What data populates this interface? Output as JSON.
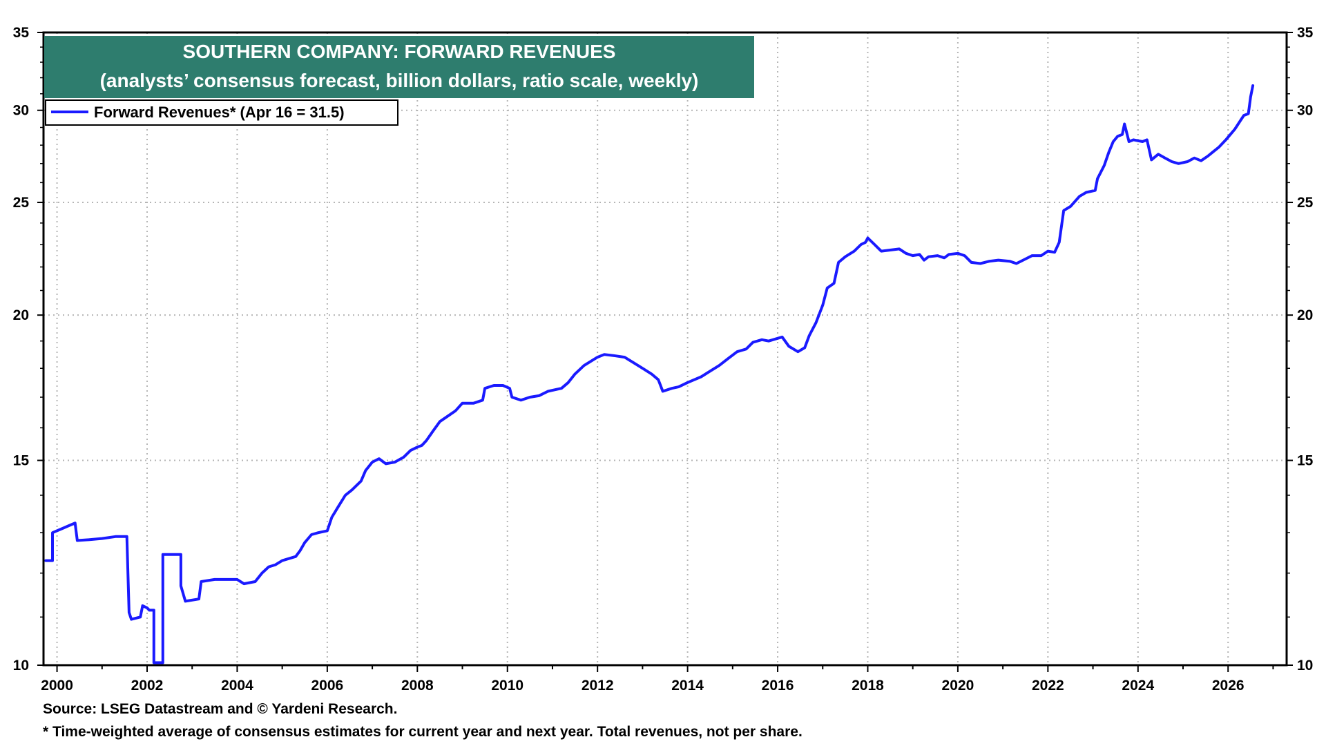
{
  "chart_data": {
    "type": "line",
    "title": "SOUTHERN COMPANY: FORWARD REVENUES",
    "subtitle": "(analysts’ consensus forecast, billion dollars, ratio scale, weekly)",
    "scale": "log",
    "ylim": [
      10,
      35
    ],
    "xlim": [
      1999.7,
      2027.3
    ],
    "y_ticks": [
      {
        "label": "35",
        "value": 35
      },
      {
        "label": "30",
        "value": 30
      },
      {
        "label": "25",
        "value": 25
      },
      {
        "label": "20",
        "value": 20
      },
      {
        "label": "15",
        "value": 15
      },
      {
        "label": "10",
        "value": 10
      }
    ],
    "x_ticks": [
      {
        "label": "2000",
        "value": 2000
      },
      {
        "label": "2002",
        "value": 2002
      },
      {
        "label": "2004",
        "value": 2004
      },
      {
        "label": "2006",
        "value": 2006
      },
      {
        "label": "2008",
        "value": 2008
      },
      {
        "label": "2010",
        "value": 2010
      },
      {
        "label": "2012",
        "value": 2012
      },
      {
        "label": "2014",
        "value": 2014
      },
      {
        "label": "2016",
        "value": 2016
      },
      {
        "label": "2018",
        "value": 2018
      },
      {
        "label": "2020",
        "value": 2020
      },
      {
        "label": "2022",
        "value": 2022
      },
      {
        "label": "2024",
        "value": 2024
      },
      {
        "label": "2026",
        "value": 2026
      }
    ],
    "grid": true,
    "legend_position": "top-left",
    "series": [
      {
        "name": "Forward Revenues* (Apr 16 = 31.5)",
        "color": "#1a1aff",
        "points": [
          [
            1999.75,
            12.3
          ],
          [
            1999.9,
            12.3
          ],
          [
            1999.9,
            13.0
          ],
          [
            2000.1,
            13.1
          ],
          [
            2000.3,
            13.2
          ],
          [
            2000.4,
            13.25
          ],
          [
            2000.45,
            12.8
          ],
          [
            2000.7,
            12.82
          ],
          [
            2001.0,
            12.85
          ],
          [
            2001.3,
            12.9
          ],
          [
            2001.55,
            12.9
          ],
          [
            2001.6,
            11.1
          ],
          [
            2001.65,
            10.95
          ],
          [
            2001.85,
            11.0
          ],
          [
            2001.9,
            11.25
          ],
          [
            2002.0,
            11.2
          ],
          [
            2002.05,
            11.15
          ],
          [
            2002.15,
            11.15
          ],
          [
            2002.15,
            10.05
          ],
          [
            2002.35,
            10.05
          ],
          [
            2002.35,
            12.45
          ],
          [
            2002.75,
            12.45
          ],
          [
            2002.75,
            11.7
          ],
          [
            2002.85,
            11.35
          ],
          [
            2003.15,
            11.4
          ],
          [
            2003.2,
            11.8
          ],
          [
            2003.5,
            11.85
          ],
          [
            2003.8,
            11.85
          ],
          [
            2004.0,
            11.85
          ],
          [
            2004.15,
            11.75
          ],
          [
            2004.4,
            11.8
          ],
          [
            2004.55,
            12.0
          ],
          [
            2004.7,
            12.15
          ],
          [
            2004.85,
            12.2
          ],
          [
            2005.0,
            12.3
          ],
          [
            2005.3,
            12.4
          ],
          [
            2005.4,
            12.55
          ],
          [
            2005.5,
            12.75
          ],
          [
            2005.65,
            12.95
          ],
          [
            2005.8,
            13.0
          ],
          [
            2006.0,
            13.05
          ],
          [
            2006.1,
            13.4
          ],
          [
            2006.25,
            13.7
          ],
          [
            2006.4,
            14.0
          ],
          [
            2006.55,
            14.15
          ],
          [
            2006.75,
            14.4
          ],
          [
            2006.85,
            14.7
          ],
          [
            2007.0,
            14.95
          ],
          [
            2007.15,
            15.05
          ],
          [
            2007.3,
            14.9
          ],
          [
            2007.5,
            14.95
          ],
          [
            2007.7,
            15.1
          ],
          [
            2007.85,
            15.3
          ],
          [
            2008.0,
            15.4
          ],
          [
            2008.1,
            15.45
          ],
          [
            2008.2,
            15.6
          ],
          [
            2008.35,
            15.9
          ],
          [
            2008.5,
            16.2
          ],
          [
            2008.7,
            16.4
          ],
          [
            2008.85,
            16.55
          ],
          [
            2009.0,
            16.8
          ],
          [
            2009.25,
            16.8
          ],
          [
            2009.45,
            16.9
          ],
          [
            2009.5,
            17.3
          ],
          [
            2009.7,
            17.4
          ],
          [
            2009.9,
            17.4
          ],
          [
            2010.05,
            17.3
          ],
          [
            2010.1,
            17.0
          ],
          [
            2010.3,
            16.9
          ],
          [
            2010.5,
            17.0
          ],
          [
            2010.7,
            17.05
          ],
          [
            2010.9,
            17.2
          ],
          [
            2011.05,
            17.25
          ],
          [
            2011.2,
            17.3
          ],
          [
            2011.35,
            17.5
          ],
          [
            2011.5,
            17.8
          ],
          [
            2011.7,
            18.1
          ],
          [
            2011.9,
            18.3
          ],
          [
            2012.0,
            18.4
          ],
          [
            2012.15,
            18.5
          ],
          [
            2012.4,
            18.45
          ],
          [
            2012.6,
            18.4
          ],
          [
            2012.8,
            18.2
          ],
          [
            2013.0,
            18.0
          ],
          [
            2013.2,
            17.8
          ],
          [
            2013.35,
            17.6
          ],
          [
            2013.45,
            17.2
          ],
          [
            2013.65,
            17.3
          ],
          [
            2013.8,
            17.35
          ],
          [
            2014.0,
            17.5
          ],
          [
            2014.3,
            17.7
          ],
          [
            2014.5,
            17.9
          ],
          [
            2014.7,
            18.1
          ],
          [
            2014.9,
            18.35
          ],
          [
            2015.1,
            18.6
          ],
          [
            2015.3,
            18.7
          ],
          [
            2015.45,
            18.95
          ],
          [
            2015.65,
            19.05
          ],
          [
            2015.8,
            19.0
          ],
          [
            2016.0,
            19.1
          ],
          [
            2016.1,
            19.15
          ],
          [
            2016.25,
            18.8
          ],
          [
            2016.45,
            18.6
          ],
          [
            2016.6,
            18.75
          ],
          [
            2016.7,
            19.2
          ],
          [
            2016.85,
            19.7
          ],
          [
            2017.0,
            20.4
          ],
          [
            2017.1,
            21.1
          ],
          [
            2017.25,
            21.3
          ],
          [
            2017.35,
            22.2
          ],
          [
            2017.5,
            22.45
          ],
          [
            2017.7,
            22.7
          ],
          [
            2017.85,
            23.0
          ],
          [
            2017.95,
            23.1
          ],
          [
            2018.0,
            23.3
          ],
          [
            2018.15,
            23.0
          ],
          [
            2018.3,
            22.7
          ],
          [
            2018.5,
            22.75
          ],
          [
            2018.7,
            22.8
          ],
          [
            2018.85,
            22.6
          ],
          [
            2019.0,
            22.5
          ],
          [
            2019.15,
            22.55
          ],
          [
            2019.25,
            22.3
          ],
          [
            2019.35,
            22.45
          ],
          [
            2019.55,
            22.5
          ],
          [
            2019.7,
            22.4
          ],
          [
            2019.8,
            22.55
          ],
          [
            2020.0,
            22.6
          ],
          [
            2020.15,
            22.5
          ],
          [
            2020.3,
            22.2
          ],
          [
            2020.5,
            22.15
          ],
          [
            2020.7,
            22.25
          ],
          [
            2020.9,
            22.3
          ],
          [
            2021.15,
            22.25
          ],
          [
            2021.3,
            22.15
          ],
          [
            2021.5,
            22.35
          ],
          [
            2021.65,
            22.5
          ],
          [
            2021.85,
            22.5
          ],
          [
            2022.0,
            22.7
          ],
          [
            2022.15,
            22.65
          ],
          [
            2022.25,
            23.1
          ],
          [
            2022.35,
            24.6
          ],
          [
            2022.5,
            24.8
          ],
          [
            2022.7,
            25.3
          ],
          [
            2022.85,
            25.5
          ],
          [
            2023.05,
            25.6
          ],
          [
            2023.1,
            26.2
          ],
          [
            2023.25,
            26.9
          ],
          [
            2023.35,
            27.6
          ],
          [
            2023.45,
            28.2
          ],
          [
            2023.55,
            28.5
          ],
          [
            2023.65,
            28.6
          ],
          [
            2023.7,
            29.2
          ],
          [
            2023.8,
            28.2
          ],
          [
            2023.9,
            28.3
          ],
          [
            2024.1,
            28.2
          ],
          [
            2024.2,
            28.3
          ],
          [
            2024.3,
            27.2
          ],
          [
            2024.45,
            27.5
          ],
          [
            2024.6,
            27.3
          ],
          [
            2024.75,
            27.1
          ],
          [
            2024.9,
            27.0
          ],
          [
            2025.1,
            27.1
          ],
          [
            2025.25,
            27.3
          ],
          [
            2025.4,
            27.15
          ],
          [
            2025.55,
            27.4
          ],
          [
            2025.65,
            27.6
          ],
          [
            2025.8,
            27.9
          ],
          [
            2025.95,
            28.3
          ],
          [
            2026.05,
            28.6
          ],
          [
            2026.15,
            28.9
          ],
          [
            2026.25,
            29.3
          ],
          [
            2026.35,
            29.7
          ],
          [
            2026.45,
            29.8
          ],
          [
            2026.5,
            30.8
          ],
          [
            2026.55,
            31.5
          ]
        ]
      }
    ]
  },
  "notes": {
    "source": "Source: LSEG Datastream and © Yardeni Research.",
    "footnote": "* Time-weighted average of consensus estimates for current year and next year. Total revenues, not per share."
  }
}
